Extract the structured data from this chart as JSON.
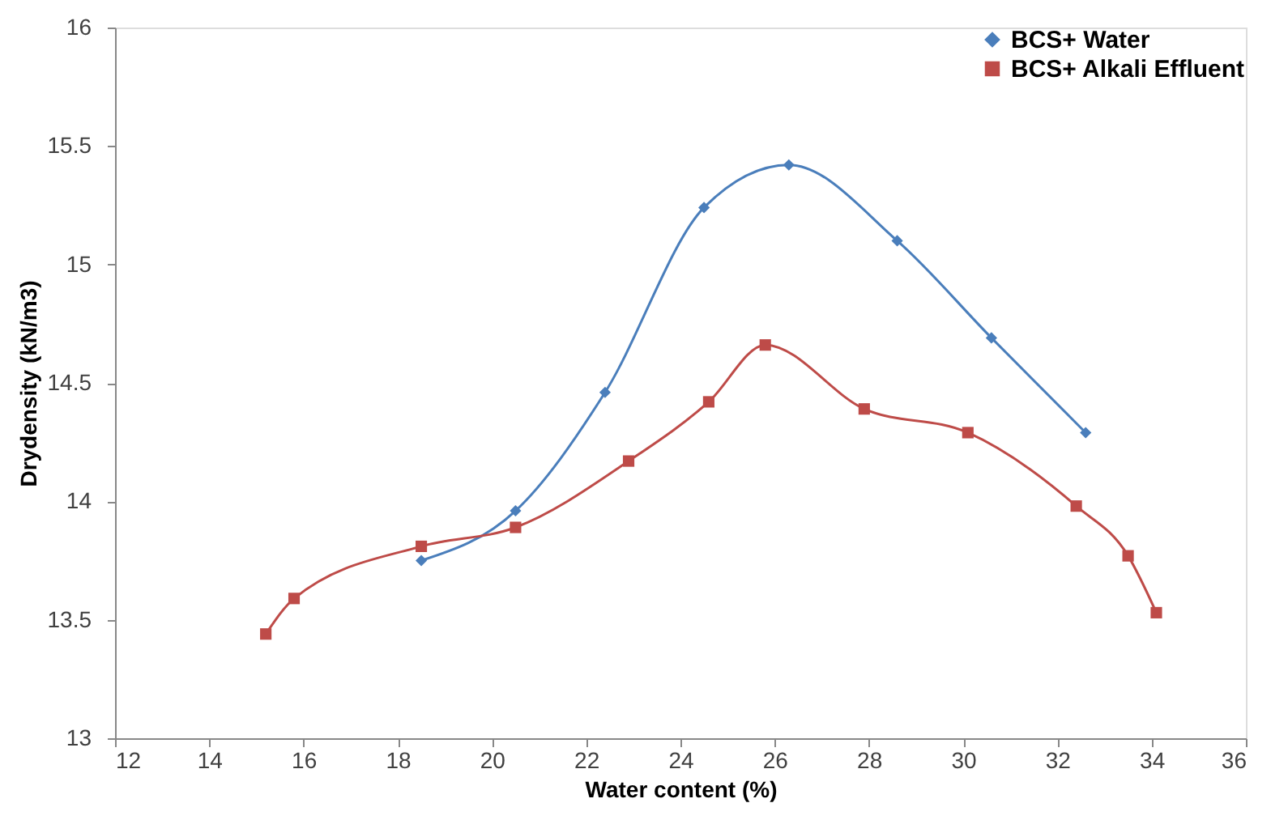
{
  "chart_data": {
    "type": "line",
    "xlabel": "Water content (%)",
    "ylabel": "Drydensity (kN/m3)",
    "xlim": [
      12,
      36
    ],
    "xticks": [
      12,
      14,
      16,
      18,
      20,
      22,
      24,
      26,
      28,
      30,
      32,
      34,
      36
    ],
    "ylim": [
      13,
      16
    ],
    "yticks": [
      13,
      13.5,
      14,
      14.5,
      15,
      15.5,
      16
    ],
    "grid": false,
    "legend": "top right",
    "line_style": "solid",
    "series": [
      {
        "name": "BCS+ Water",
        "color": "#4a7ebb",
        "marker": "diamond",
        "x": [
          18.5,
          20.5,
          22.4,
          24.5,
          26.3,
          28.6,
          30.6,
          32.6
        ],
        "values": [
          13.75,
          13.96,
          14.46,
          15.24,
          15.42,
          15.1,
          14.69,
          14.29
        ]
      },
      {
        "name": "BCS+ Alkali Effluent",
        "color": "#be4b48",
        "marker": "square",
        "x": [
          15.2,
          15.8,
          18.5,
          20.5,
          22.9,
          24.6,
          25.8,
          27.9,
          30.1,
          32.4,
          33.5,
          34.1
        ],
        "values": [
          13.44,
          13.59,
          13.81,
          13.89,
          14.17,
          14.42,
          14.66,
          14.39,
          14.29,
          13.98,
          13.77,
          13.53
        ]
      }
    ]
  }
}
